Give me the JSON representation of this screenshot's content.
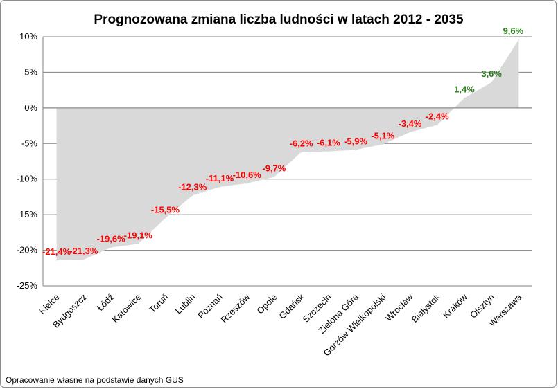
{
  "chart_data": {
    "type": "area",
    "title": "Prognozowana zmiana liczba ludności w latach 2012 - 2035",
    "categories": [
      "Kielce",
      "Bydgoszcz",
      "Łódź",
      "Katowice",
      "Toruń",
      "Lublin",
      "Poznań",
      "Rzeszów",
      "Opole",
      "Gdańsk",
      "Szczecin",
      "Zielona Góra",
      "Gorzów Wielkopolski",
      "Wrocław",
      "Białystok",
      "Kraków",
      "Olsztyn",
      "Warszawa"
    ],
    "values": [
      -21.4,
      -21.3,
      -19.6,
      -19.1,
      -15.5,
      -12.3,
      -11.1,
      -10.6,
      -9.7,
      -6.2,
      -6.1,
      -5.9,
      -5.1,
      -3.4,
      -2.4,
      1.4,
      3.6,
      9.6
    ],
    "data_labels": [
      "-21,4%",
      "-21,3%",
      "-19,6%",
      "-19,1%",
      "-15,5%",
      "-12,3%",
      "-11,1%",
      "-10,6%",
      "-9,7%",
      "-6,2%",
      "-6,1%",
      "-5,9%",
      "-5,1%",
      "-3,4%",
      "-2,4%",
      "1,4%",
      "3,6%",
      "9,6%"
    ],
    "ylim": [
      -25,
      10
    ],
    "y_ticks": [
      10,
      5,
      0,
      -5,
      -10,
      -15,
      -20,
      -25
    ],
    "y_tick_labels": [
      "10%",
      "5%",
      "0%",
      "-5%",
      "-10%",
      "-15%",
      "-20%",
      "-25%"
    ],
    "grid": true,
    "legend": "none",
    "colors": {
      "area": "#d9d9d9",
      "negative_label": "#ff0000",
      "positive_label": "#2e7d1e",
      "grid": "#808080"
    }
  },
  "footnote": "Opracowanie własne na podstawie danych GUS"
}
